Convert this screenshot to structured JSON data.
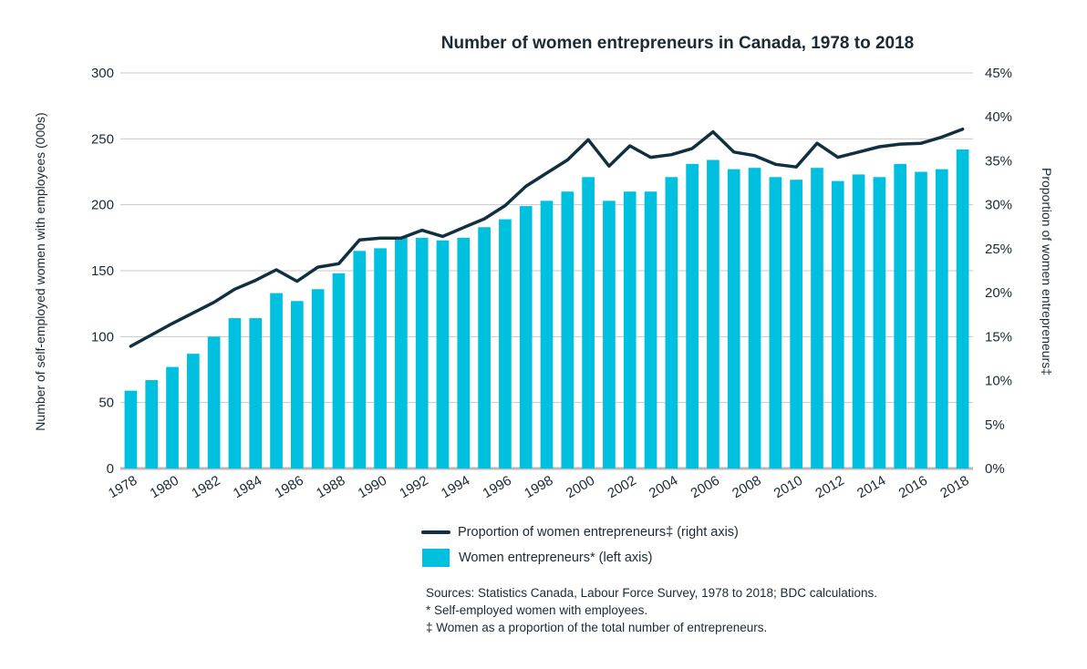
{
  "chart_data": {
    "type": "bar",
    "title": "Number of women entrepreneurs in Canada, 1978 to 2018",
    "ylabel": "Number of self-employed women with employees (000s)",
    "y2label": "Proportion of women entrepreneurs‡",
    "ylim": [
      0,
      300
    ],
    "y2lim": [
      0,
      45
    ],
    "yticks": [
      "0",
      "50",
      "100",
      "150",
      "200",
      "250",
      "300"
    ],
    "y2ticks": [
      "0%",
      "5%",
      "10%",
      "15%",
      "20%",
      "25%",
      "30%",
      "35%",
      "40%",
      "45%"
    ],
    "x_tick_labels": [
      "1978",
      "1980",
      "1982",
      "1984",
      "1986",
      "1988",
      "1990",
      "1992",
      "1994",
      "1996",
      "1998",
      "2000",
      "2002",
      "2004",
      "2006",
      "2008",
      "2010",
      "2012",
      "2014",
      "2016",
      "2018"
    ],
    "grid": true,
    "legend_position": "bottom",
    "colors": {
      "bars": "#00c0e0",
      "line": "#10303f",
      "grid": "#c8c8c8"
    },
    "categories": [
      1978,
      1979,
      1980,
      1981,
      1982,
      1983,
      1984,
      1985,
      1986,
      1987,
      1988,
      1989,
      1990,
      1991,
      1992,
      1993,
      1994,
      1995,
      1996,
      1997,
      1998,
      1999,
      2000,
      2001,
      2002,
      2003,
      2004,
      2005,
      2006,
      2007,
      2008,
      2009,
      2010,
      2011,
      2012,
      2013,
      2014,
      2015,
      2016,
      2017,
      2018
    ],
    "series": [
      {
        "name": "Women entrepreneurs* (left axis)",
        "type": "bar",
        "axis": "left",
        "values": [
          59,
          67,
          77,
          87,
          100,
          114,
          114,
          133,
          127,
          136,
          148,
          165,
          167,
          175,
          175,
          173,
          175,
          183,
          189,
          199,
          203,
          210,
          221,
          203,
          210,
          210,
          221,
          231,
          234,
          227,
          228,
          221,
          219,
          228,
          218,
          223,
          221,
          231,
          225,
          227,
          242
        ]
      },
      {
        "name": "Proportion of women entrepreneurs‡ (right axis)",
        "type": "line",
        "axis": "right",
        "values": [
          13.9,
          15.2,
          16.5,
          17.7,
          18.9,
          20.4,
          21.4,
          22.6,
          21.3,
          22.9,
          23.3,
          26.0,
          26.2,
          26.2,
          27.1,
          26.4,
          27.4,
          28.4,
          29.9,
          32.1,
          33.6,
          35.1,
          37.4,
          34.4,
          36.7,
          35.4,
          35.7,
          36.4,
          38.3,
          36.0,
          35.6,
          34.6,
          34.3,
          37.0,
          35.4,
          36.0,
          36.6,
          36.9,
          37.0,
          37.7,
          38.6
        ]
      }
    ]
  },
  "legend": {
    "line_label": "Proportion of women entrepreneurs‡ (right axis)",
    "bar_label": "Women entrepreneurs* (left axis)"
  },
  "notes": {
    "sources": "Sources: Statistics Canada, Labour Force Survey, 1978 to 2018; BDC calculations.",
    "note1": "* Self-employed women with employees.",
    "note2": "‡ Women as a proportion of the total number of entrepreneurs."
  }
}
